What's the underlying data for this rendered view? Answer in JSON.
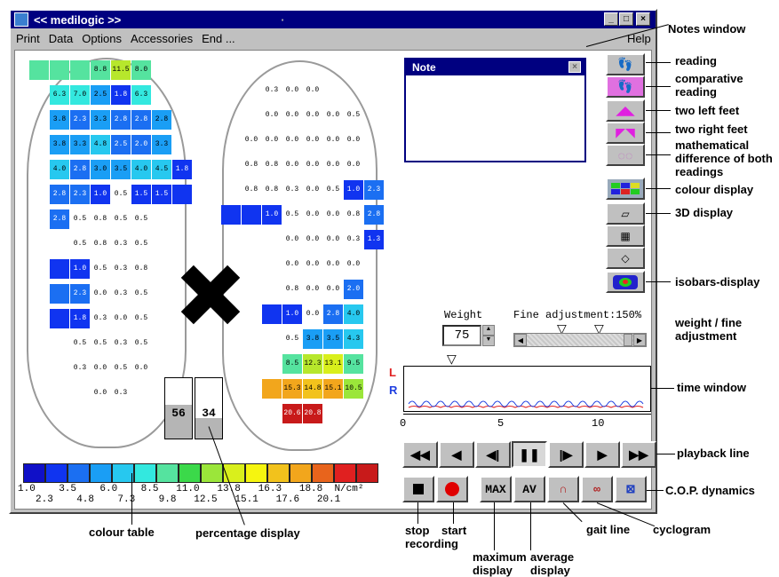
{
  "window": {
    "title": "<< medilogic >>",
    "dot": "·"
  },
  "menu": {
    "print": "Print",
    "data": "Data",
    "options": "Options",
    "accessories": "Accessories",
    "end": "End ...",
    "help": "Help"
  },
  "left_foot": [
    {
      "c": 0,
      "r": 0,
      "v": "",
      "col": "#55e39f"
    },
    {
      "c": 1,
      "r": 0,
      "v": "",
      "col": "#55e39f"
    },
    {
      "c": 2,
      "r": 0,
      "v": "",
      "col": "#55e39f"
    },
    {
      "c": 3,
      "r": 0,
      "v": "8.8",
      "col": "#55e39f"
    },
    {
      "c": 4,
      "r": 0,
      "v": "11.5",
      "col": "#b7e72c"
    },
    {
      "c": 5,
      "r": 0,
      "v": "8.0",
      "col": "#55e39f"
    },
    {
      "c": 1,
      "r": 1,
      "v": "6.3",
      "col": "#33e8df"
    },
    {
      "c": 2,
      "r": 1,
      "v": "7.0",
      "col": "#33e8df"
    },
    {
      "c": 3,
      "r": 1,
      "v": "2.5",
      "col": "#1a9ef5"
    },
    {
      "c": 4,
      "r": 1,
      "v": "1.8",
      "col": "#1034f0"
    },
    {
      "c": 5,
      "r": 1,
      "v": "6.3",
      "col": "#33e8df"
    },
    {
      "c": 1,
      "r": 2,
      "v": "3.8",
      "col": "#1a9ef5"
    },
    {
      "c": 2,
      "r": 2,
      "v": "2.3",
      "col": "#1b6ff2"
    },
    {
      "c": 3,
      "r": 2,
      "v": "3.3",
      "col": "#1a9ef5"
    },
    {
      "c": 4,
      "r": 2,
      "v": "2.8",
      "col": "#1b6ff2"
    },
    {
      "c": 5,
      "r": 2,
      "v": "2.8",
      "col": "#1b6ff2"
    },
    {
      "c": 6,
      "r": 2,
      "v": "2.8",
      "col": "#1a9ef5"
    },
    {
      "c": 1,
      "r": 3,
      "v": "3.8",
      "col": "#1a9ef5"
    },
    {
      "c": 2,
      "r": 3,
      "v": "3.3",
      "col": "#1a9ef5"
    },
    {
      "c": 3,
      "r": 3,
      "v": "4.8",
      "col": "#27c8ef"
    },
    {
      "c": 4,
      "r": 3,
      "v": "2.5",
      "col": "#1b6ff2"
    },
    {
      "c": 5,
      "r": 3,
      "v": "2.0",
      "col": "#1b6ff2"
    },
    {
      "c": 6,
      "r": 3,
      "v": "3.3",
      "col": "#1a9ef5"
    },
    {
      "c": 1,
      "r": 4,
      "v": "4.0",
      "col": "#27c8ef"
    },
    {
      "c": 2,
      "r": 4,
      "v": "2.8",
      "col": "#1b6ff2"
    },
    {
      "c": 3,
      "r": 4,
      "v": "3.0",
      "col": "#1a9ef5"
    },
    {
      "c": 4,
      "r": 4,
      "v": "3.5",
      "col": "#1a9ef5"
    },
    {
      "c": 5,
      "r": 4,
      "v": "4.0",
      "col": "#27c8ef"
    },
    {
      "c": 6,
      "r": 4,
      "v": "4.5",
      "col": "#27c8ef"
    },
    {
      "c": 7,
      "r": 4,
      "v": "1.8",
      "col": "#1034f0"
    },
    {
      "c": 1,
      "r": 5,
      "v": "2.8",
      "col": "#1b6ff2"
    },
    {
      "c": 2,
      "r": 5,
      "v": "2.3",
      "col": "#1b6ff2"
    },
    {
      "c": 3,
      "r": 5,
      "v": "1.0",
      "col": "#1034f0"
    },
    {
      "c": 4,
      "r": 5,
      "v": "0.5",
      "col": ""
    },
    {
      "c": 5,
      "r": 5,
      "v": "1.5",
      "col": "#1034f0"
    },
    {
      "c": 6,
      "r": 5,
      "v": "1.5",
      "col": "#1034f0"
    },
    {
      "c": 7,
      "r": 5,
      "v": "",
      "col": "#1034f0"
    },
    {
      "c": 1,
      "r": 6,
      "v": "2.8",
      "col": "#1b6ff2"
    },
    {
      "c": 2,
      "r": 6,
      "v": "0.5",
      "col": ""
    },
    {
      "c": 3,
      "r": 6,
      "v": "0.8",
      "col": ""
    },
    {
      "c": 4,
      "r": 6,
      "v": "0.5",
      "col": ""
    },
    {
      "c": 5,
      "r": 6,
      "v": "0.5",
      "col": ""
    },
    {
      "c": 2,
      "r": 7,
      "v": "0.5",
      "col": ""
    },
    {
      "c": 3,
      "r": 7,
      "v": "0.8",
      "col": ""
    },
    {
      "c": 4,
      "r": 7,
      "v": "0.3",
      "col": ""
    },
    {
      "c": 5,
      "r": 7,
      "v": "0.5",
      "col": ""
    },
    {
      "c": 1,
      "r": 8,
      "v": "",
      "col": "#1034f0"
    },
    {
      "c": 2,
      "r": 8,
      "v": "1.0",
      "col": "#1034f0"
    },
    {
      "c": 3,
      "r": 8,
      "v": "0.5",
      "col": ""
    },
    {
      "c": 4,
      "r": 8,
      "v": "0.3",
      "col": ""
    },
    {
      "c": 5,
      "r": 8,
      "v": "0.8",
      "col": ""
    },
    {
      "c": 1,
      "r": 9,
      "v": "",
      "col": "#1b6ff2"
    },
    {
      "c": 2,
      "r": 9,
      "v": "2.3",
      "col": "#1b6ff2"
    },
    {
      "c": 3,
      "r": 9,
      "v": "0.0",
      "col": ""
    },
    {
      "c": 4,
      "r": 9,
      "v": "0.3",
      "col": ""
    },
    {
      "c": 5,
      "r": 9,
      "v": "0.5",
      "col": ""
    },
    {
      "c": 1,
      "r": 10,
      "v": "",
      "col": "#1034f0"
    },
    {
      "c": 2,
      "r": 10,
      "v": "1.8",
      "col": "#1034f0"
    },
    {
      "c": 3,
      "r": 10,
      "v": "0.3",
      "col": ""
    },
    {
      "c": 4,
      "r": 10,
      "v": "0.0",
      "col": ""
    },
    {
      "c": 5,
      "r": 10,
      "v": "0.5",
      "col": ""
    },
    {
      "c": 2,
      "r": 11,
      "v": "0.5",
      "col": ""
    },
    {
      "c": 3,
      "r": 11,
      "v": "0.5",
      "col": ""
    },
    {
      "c": 4,
      "r": 11,
      "v": "0.3",
      "col": ""
    },
    {
      "c": 5,
      "r": 11,
      "v": "0.5",
      "col": ""
    },
    {
      "c": 2,
      "r": 12,
      "v": "0.3",
      "col": ""
    },
    {
      "c": 3,
      "r": 12,
      "v": "0.0",
      "col": ""
    },
    {
      "c": 4,
      "r": 12,
      "v": "0.5",
      "col": ""
    },
    {
      "c": 5,
      "r": 12,
      "v": "0.0",
      "col": ""
    },
    {
      "c": 3,
      "r": 13,
      "v": "0.0",
      "col": ""
    },
    {
      "c": 4,
      "r": 13,
      "v": "0.3",
      "col": ""
    }
  ],
  "right_foot": [
    {
      "c": 1,
      "r": 0,
      "v": "0.3",
      "col": ""
    },
    {
      "c": 2,
      "r": 0,
      "v": "0.0",
      "col": ""
    },
    {
      "c": 3,
      "r": 0,
      "v": "0.0",
      "col": ""
    },
    {
      "c": 1,
      "r": 1,
      "v": "0.0",
      "col": ""
    },
    {
      "c": 2,
      "r": 1,
      "v": "0.0",
      "col": ""
    },
    {
      "c": 3,
      "r": 1,
      "v": "0.0",
      "col": ""
    },
    {
      "c": 4,
      "r": 1,
      "v": "0.0",
      "col": ""
    },
    {
      "c": 5,
      "r": 1,
      "v": "0.5",
      "col": ""
    },
    {
      "c": 0,
      "r": 2,
      "v": "0.0",
      "col": ""
    },
    {
      "c": 1,
      "r": 2,
      "v": "0.0",
      "col": ""
    },
    {
      "c": 2,
      "r": 2,
      "v": "0.0",
      "col": ""
    },
    {
      "c": 3,
      "r": 2,
      "v": "0.0",
      "col": ""
    },
    {
      "c": 4,
      "r": 2,
      "v": "0.0",
      "col": ""
    },
    {
      "c": 5,
      "r": 2,
      "v": "0.0",
      "col": ""
    },
    {
      "c": 0,
      "r": 3,
      "v": "0.8",
      "col": ""
    },
    {
      "c": 1,
      "r": 3,
      "v": "0.8",
      "col": ""
    },
    {
      "c": 2,
      "r": 3,
      "v": "0.0",
      "col": ""
    },
    {
      "c": 3,
      "r": 3,
      "v": "0.0",
      "col": ""
    },
    {
      "c": 4,
      "r": 3,
      "v": "0.0",
      "col": ""
    },
    {
      "c": 5,
      "r": 3,
      "v": "0.0",
      "col": ""
    },
    {
      "c": 0,
      "r": 4,
      "v": "0.8",
      "col": ""
    },
    {
      "c": 1,
      "r": 4,
      "v": "0.8",
      "col": ""
    },
    {
      "c": 2,
      "r": 4,
      "v": "0.3",
      "col": ""
    },
    {
      "c": 3,
      "r": 4,
      "v": "0.0",
      "col": ""
    },
    {
      "c": 4,
      "r": 4,
      "v": "0.5",
      "col": ""
    },
    {
      "c": 5,
      "r": 4,
      "v": "1.0",
      "col": "#1034f0"
    },
    {
      "c": 6,
      "r": 4,
      "v": "2.3",
      "col": "#1b6ff2"
    },
    {
      "c": -1,
      "r": 5,
      "v": "",
      "col": "#1034f0"
    },
    {
      "c": 0,
      "r": 5,
      "v": "",
      "col": "#1034f0"
    },
    {
      "c": 1,
      "r": 5,
      "v": "1.0",
      "col": "#1034f0"
    },
    {
      "c": 2,
      "r": 5,
      "v": "0.5",
      "col": ""
    },
    {
      "c": 3,
      "r": 5,
      "v": "0.0",
      "col": ""
    },
    {
      "c": 4,
      "r": 5,
      "v": "0.0",
      "col": ""
    },
    {
      "c": 5,
      "r": 5,
      "v": "0.8",
      "col": ""
    },
    {
      "c": 6,
      "r": 5,
      "v": "2.8",
      "col": "#1b6ff2"
    },
    {
      "c": 2,
      "r": 6,
      "v": "0.0",
      "col": ""
    },
    {
      "c": 3,
      "r": 6,
      "v": "0.0",
      "col": ""
    },
    {
      "c": 4,
      "r": 6,
      "v": "0.0",
      "col": ""
    },
    {
      "c": 5,
      "r": 6,
      "v": "0.3",
      "col": ""
    },
    {
      "c": 6,
      "r": 6,
      "v": "1.3",
      "col": "#1034f0"
    },
    {
      "c": 2,
      "r": 7,
      "v": "0.0",
      "col": ""
    },
    {
      "c": 3,
      "r": 7,
      "v": "0.0",
      "col": ""
    },
    {
      "c": 4,
      "r": 7,
      "v": "0.0",
      "col": ""
    },
    {
      "c": 5,
      "r": 7,
      "v": "0.0",
      "col": ""
    },
    {
      "c": 2,
      "r": 8,
      "v": "0.8",
      "col": ""
    },
    {
      "c": 3,
      "r": 8,
      "v": "0.0",
      "col": ""
    },
    {
      "c": 4,
      "r": 8,
      "v": "0.0",
      "col": ""
    },
    {
      "c": 5,
      "r": 8,
      "v": "2.0",
      "col": "#1b6ff2"
    },
    {
      "c": 1,
      "r": 9,
      "v": "",
      "col": "#1034f0"
    },
    {
      "c": 2,
      "r": 9,
      "v": "1.0",
      "col": "#1034f0"
    },
    {
      "c": 3,
      "r": 9,
      "v": "0.0",
      "col": ""
    },
    {
      "c": 4,
      "r": 9,
      "v": "2.8",
      "col": "#1b6ff2"
    },
    {
      "c": 5,
      "r": 9,
      "v": "4.0",
      "col": "#27c8ef"
    },
    {
      "c": 2,
      "r": 10,
      "v": "0.5",
      "col": ""
    },
    {
      "c": 3,
      "r": 10,
      "v": "3.8",
      "col": "#1a9ef5"
    },
    {
      "c": 4,
      "r": 10,
      "v": "3.5",
      "col": "#1a9ef5"
    },
    {
      "c": 5,
      "r": 10,
      "v": "4.3",
      "col": "#27c8ef"
    },
    {
      "c": 2,
      "r": 11,
      "v": "8.5",
      "col": "#55e39f"
    },
    {
      "c": 3,
      "r": 11,
      "v": "12.3",
      "col": "#b7e72c"
    },
    {
      "c": 4,
      "r": 11,
      "v": "13.1",
      "col": "#d9ef1c"
    },
    {
      "c": 5,
      "r": 11,
      "v": "9.5",
      "col": "#55e39f"
    },
    {
      "c": 1,
      "r": 12,
      "v": "",
      "col": "#f2a61c"
    },
    {
      "c": 2,
      "r": 12,
      "v": "15.3",
      "col": "#f2a61c"
    },
    {
      "c": 3,
      "r": 12,
      "v": "14.8",
      "col": "#f2c21c"
    },
    {
      "c": 4,
      "r": 12,
      "v": "15.1",
      "col": "#f2a61c"
    },
    {
      "c": 5,
      "r": 12,
      "v": "10.5",
      "col": "#9be63a"
    },
    {
      "c": 2,
      "r": 13,
      "v": "20.6",
      "col": "#c81a1a"
    },
    {
      "c": 3,
      "r": 13,
      "v": "20.8",
      "col": "#c81a1a"
    }
  ],
  "scale": {
    "colors": [
      "#1010c8",
      "#1034f0",
      "#1b6ff2",
      "#1a9ef5",
      "#27c8ef",
      "#33e8df",
      "#55e39f",
      "#3bd94a",
      "#9be63a",
      "#d9ef1c",
      "#f6f50f",
      "#f2c21c",
      "#f2a61c",
      "#e8641c",
      "#e02020",
      "#c81a1a"
    ],
    "top_labels": "1.0    3.5    6.0    8.5   11.0   13.8   16.3   18.8  N/cm²",
    "bottom_labels": "2.3    4.8    7.3    9.8   12.5   15.1   17.6   20.1"
  },
  "percentage": {
    "left": "56",
    "right": "34"
  },
  "note": {
    "title": "Note",
    "close": "×"
  },
  "weight": {
    "label": "Weight",
    "value": "75"
  },
  "fine": {
    "label": "Fine adjustment:150%",
    "value": 1.5
  },
  "time": {
    "l": "L",
    "r": "R",
    "ticks": [
      "0",
      "5",
      "10"
    ]
  },
  "controls": {
    "max": "MAX",
    "av": "AV"
  },
  "annotations": {
    "notes_window": "Notes window",
    "reading": "reading",
    "comparative": "comparative reading",
    "two_left": "two left feet",
    "two_right": "two right feet",
    "math_diff": "mathematical difference of both readings",
    "colour_display": "colour display",
    "display_3d": "3D display",
    "isobars": "isobars-display",
    "weight_fine": "weight / fine adjustment",
    "time_window": "time window",
    "playback": "playback line",
    "cop": "C.O.P. dynamics",
    "colour_table": "colour table",
    "percentage_display": "percentage display",
    "stop": "stop recording",
    "start": "start",
    "maximum": "maximum display",
    "average": "average display",
    "gait": "gait line",
    "cyclogram": "cyclogram"
  },
  "colors": {
    "title_bar": "#000080",
    "window": "#c0c0c0",
    "line_L": "#e02020",
    "line_R": "#2040e0"
  }
}
